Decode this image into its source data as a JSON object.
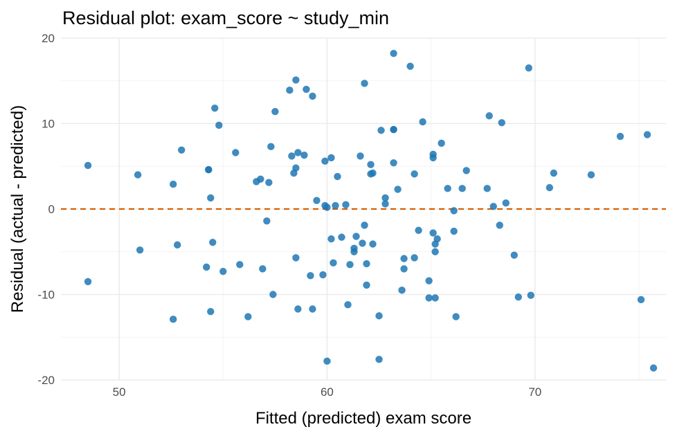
{
  "chart_data": {
    "type": "scatter",
    "title": "Residual plot: exam_score ~ study_min",
    "xlabel": "Fitted (predicted) exam score",
    "ylabel": "Residual (actual - predicted)",
    "xlim": [
      47.2,
      76.3
    ],
    "ylim": [
      -20.0,
      20.0
    ],
    "x_ticks": [
      50,
      60,
      70
    ],
    "x_tick_labels": [
      "50",
      "60",
      "70"
    ],
    "y_ticks": [
      -20,
      -10,
      0,
      10,
      20
    ],
    "y_tick_labels": [
      "-20",
      "-10",
      "0",
      "10",
      "20"
    ],
    "grid": true,
    "reference_line": {
      "y": 0,
      "style": "dashed",
      "color": "#d95f02"
    },
    "point_color": "#1f77b4",
    "points": [
      [
        48.5,
        5.1
      ],
      [
        48.5,
        -8.5
      ],
      [
        50.9,
        4.0
      ],
      [
        51.0,
        -4.8
      ],
      [
        52.6,
        2.9
      ],
      [
        52.6,
        -12.9
      ],
      [
        52.8,
        -4.2
      ],
      [
        53.0,
        6.9
      ],
      [
        54.2,
        -6.8
      ],
      [
        54.3,
        4.6
      ],
      [
        54.3,
        4.6
      ],
      [
        54.4,
        1.3
      ],
      [
        54.4,
        -12.0
      ],
      [
        54.5,
        -3.9
      ],
      [
        54.6,
        11.8
      ],
      [
        54.8,
        9.8
      ],
      [
        55.0,
        -7.3
      ],
      [
        55.6,
        6.6
      ],
      [
        55.8,
        -6.5
      ],
      [
        56.2,
        -12.6
      ],
      [
        56.6,
        3.2
      ],
      [
        56.8,
        3.5
      ],
      [
        56.9,
        -7.0
      ],
      [
        57.1,
        -1.4
      ],
      [
        57.2,
        3.1
      ],
      [
        57.3,
        7.3
      ],
      [
        57.4,
        -10.0
      ],
      [
        57.5,
        11.4
      ],
      [
        58.2,
        13.9
      ],
      [
        58.3,
        6.2
      ],
      [
        58.4,
        4.2
      ],
      [
        58.5,
        4.8
      ],
      [
        58.5,
        -5.7
      ],
      [
        58.5,
        15.1
      ],
      [
        58.6,
        6.6
      ],
      [
        58.6,
        -11.7
      ],
      [
        58.9,
        6.3
      ],
      [
        59.0,
        14.0
      ],
      [
        59.2,
        -7.8
      ],
      [
        59.3,
        13.2
      ],
      [
        59.3,
        -11.7
      ],
      [
        59.5,
        1.0
      ],
      [
        59.8,
        -7.7
      ],
      [
        59.9,
        5.6
      ],
      [
        59.9,
        0.4
      ],
      [
        60.0,
        0.2
      ],
      [
        60.0,
        -17.8
      ],
      [
        60.2,
        -3.5
      ],
      [
        60.2,
        6.0
      ],
      [
        60.3,
        -6.3
      ],
      [
        60.4,
        0.4
      ],
      [
        60.5,
        3.8
      ],
      [
        60.7,
        -3.3
      ],
      [
        60.9,
        0.5
      ],
      [
        61.0,
        -11.2
      ],
      [
        61.1,
        -6.5
      ],
      [
        61.3,
        -4.6
      ],
      [
        61.3,
        -5.0
      ],
      [
        61.4,
        -3.2
      ],
      [
        61.6,
        6.2
      ],
      [
        61.7,
        -4.0
      ],
      [
        61.8,
        14.7
      ],
      [
        61.8,
        -1.9
      ],
      [
        61.9,
        -6.4
      ],
      [
        61.9,
        -8.9
      ],
      [
        62.1,
        5.2
      ],
      [
        62.1,
        4.1
      ],
      [
        62.2,
        4.2
      ],
      [
        62.2,
        -4.1
      ],
      [
        62.5,
        -12.5
      ],
      [
        62.5,
        -17.6
      ],
      [
        62.6,
        9.2
      ],
      [
        62.8,
        1.3
      ],
      [
        62.8,
        0.6
      ],
      [
        63.2,
        18.2
      ],
      [
        63.2,
        9.3
      ],
      [
        63.2,
        5.4
      ],
      [
        63.2,
        9.3
      ],
      [
        63.4,
        2.3
      ],
      [
        63.6,
        -9.5
      ],
      [
        63.7,
        -5.8
      ],
      [
        63.7,
        -7.0
      ],
      [
        64.0,
        16.7
      ],
      [
        64.2,
        4.1
      ],
      [
        64.2,
        -5.7
      ],
      [
        64.4,
        -2.5
      ],
      [
        64.6,
        10.2
      ],
      [
        64.9,
        -8.4
      ],
      [
        64.9,
        -10.4
      ],
      [
        65.1,
        6.4
      ],
      [
        65.1,
        6.0
      ],
      [
        65.1,
        -2.8
      ],
      [
        65.2,
        -10.4
      ],
      [
        65.2,
        -4.1
      ],
      [
        65.2,
        -5.0
      ],
      [
        65.3,
        -3.5
      ],
      [
        65.5,
        7.7
      ],
      [
        65.8,
        2.4
      ],
      [
        66.1,
        -0.2
      ],
      [
        66.1,
        -2.6
      ],
      [
        66.2,
        -12.6
      ],
      [
        66.5,
        2.4
      ],
      [
        66.7,
        4.5
      ],
      [
        67.7,
        2.4
      ],
      [
        67.8,
        10.9
      ],
      [
        68.0,
        0.3
      ],
      [
        68.3,
        -1.9
      ],
      [
        68.4,
        10.1
      ],
      [
        68.6,
        0.7
      ],
      [
        69.0,
        -5.4
      ],
      [
        69.2,
        -10.3
      ],
      [
        69.7,
        16.5
      ],
      [
        69.8,
        -10.1
      ],
      [
        70.7,
        2.5
      ],
      [
        70.9,
        4.2
      ],
      [
        72.7,
        4.0
      ],
      [
        74.1,
        8.5
      ],
      [
        75.1,
        -10.6
      ],
      [
        75.4,
        8.7
      ],
      [
        75.7,
        -18.6
      ]
    ]
  }
}
